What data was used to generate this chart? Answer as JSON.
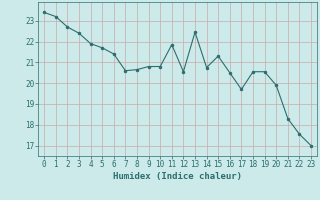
{
  "x": [
    0,
    1,
    2,
    3,
    4,
    5,
    6,
    7,
    8,
    9,
    10,
    11,
    12,
    13,
    14,
    15,
    16,
    17,
    18,
    19,
    20,
    21,
    22,
    23
  ],
  "y": [
    23.4,
    23.2,
    22.7,
    22.4,
    21.9,
    21.7,
    21.4,
    20.6,
    20.65,
    20.8,
    20.8,
    21.85,
    20.55,
    22.45,
    20.75,
    21.3,
    20.5,
    19.7,
    20.55,
    20.55,
    19.9,
    18.3,
    17.55,
    17.0
  ],
  "line_color": "#2d6e6e",
  "marker": ".",
  "marker_size": 3,
  "bg_color": "#cceaea",
  "grid_color": "#c8a8a8",
  "xlabel": "Humidex (Indice chaleur)",
  "ylim": [
    16.5,
    23.9
  ],
  "xlim": [
    -0.5,
    23.5
  ],
  "yticks": [
    17,
    18,
    19,
    20,
    21,
    22,
    23
  ],
  "xticks": [
    0,
    1,
    2,
    3,
    4,
    5,
    6,
    7,
    8,
    9,
    10,
    11,
    12,
    13,
    14,
    15,
    16,
    17,
    18,
    19,
    20,
    21,
    22,
    23
  ],
  "xlabel_fontsize": 6.5,
  "tick_fontsize": 5.5,
  "line_width": 0.8
}
